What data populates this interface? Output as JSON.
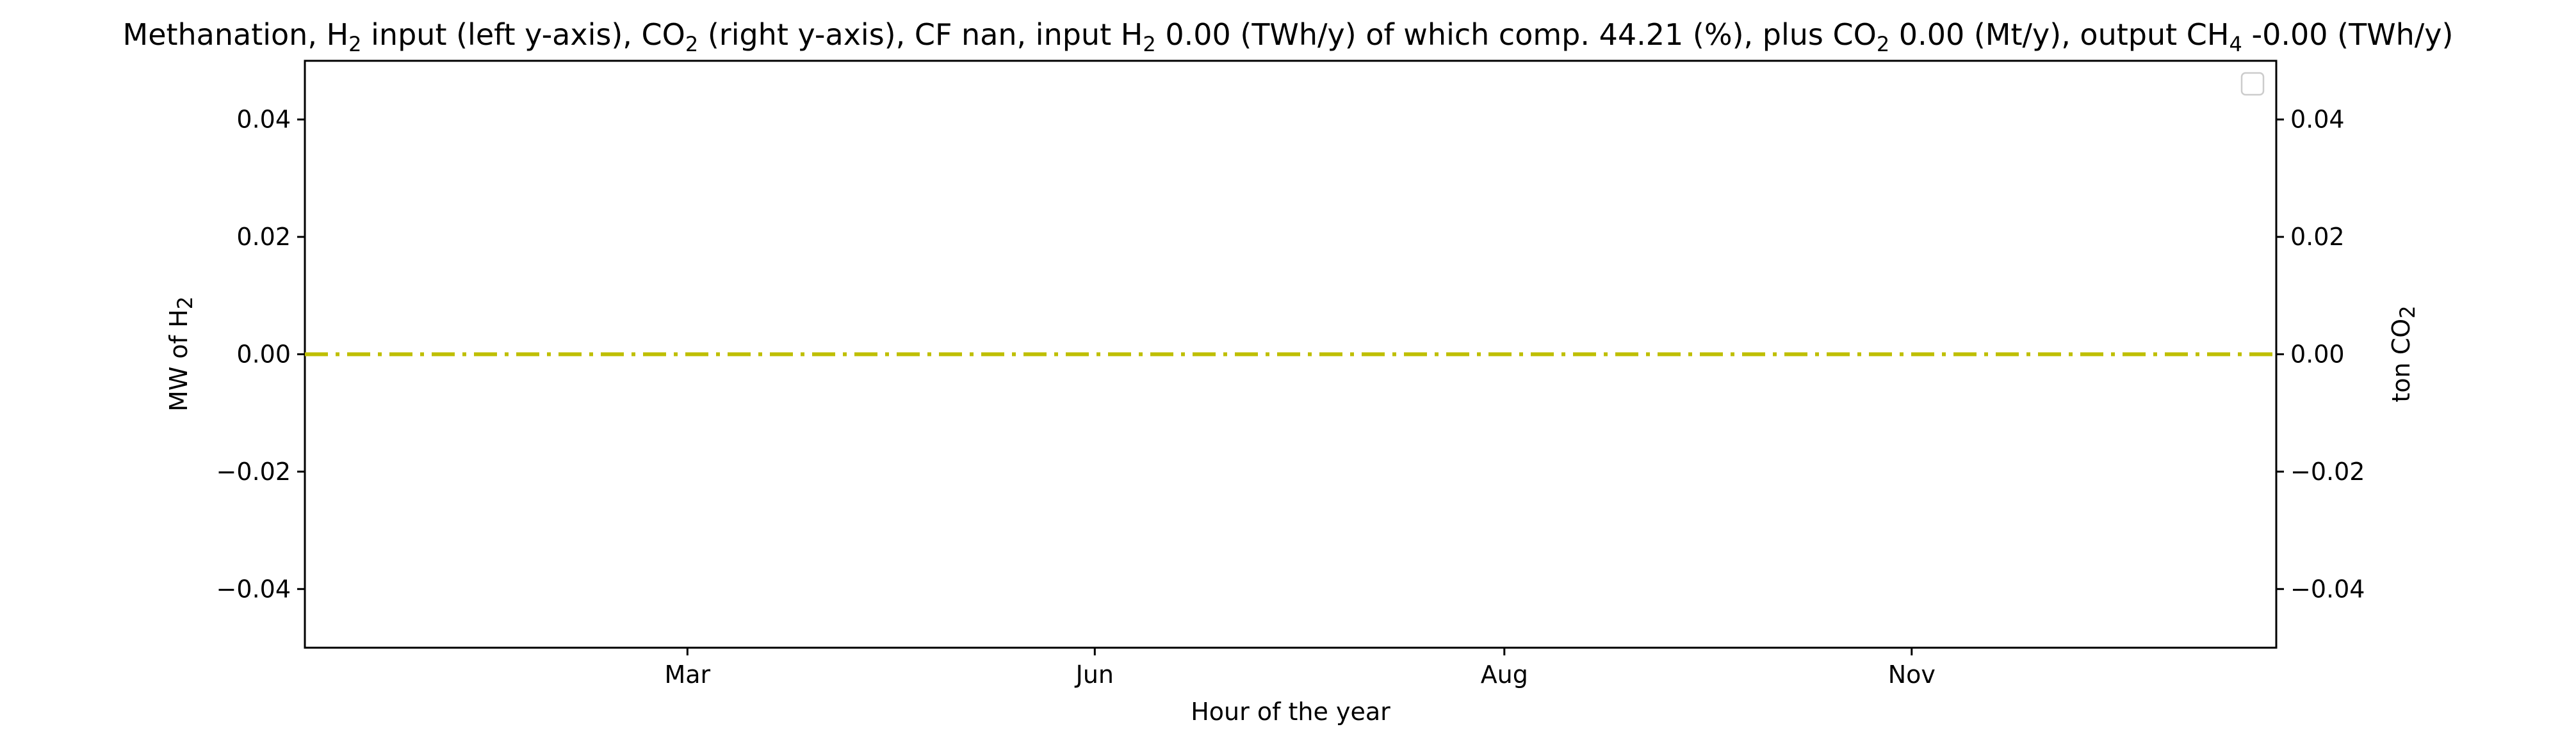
{
  "chart_data": {
    "type": "line",
    "title": {
      "p1": "Methanation, H",
      "s1": "2",
      "p2": " input (left y-axis), CO",
      "s2": "2",
      "p3": " (right y-axis), CF nan, input H",
      "s3": "2",
      "p4": " 0.00 (TWh/y) of which comp. 44.21 (%), plus CO",
      "s4": "2",
      "p5": " 0.00 (Mt/y), output CH",
      "s5": "4",
      "p6": " -0.00 (TWh/y)"
    },
    "xlabel": "Hour of the year",
    "ylabel_left": {
      "main": "MW of H",
      "sub": "2"
    },
    "ylabel_right": {
      "main": "ton CO",
      "sub": "2"
    },
    "x_range": [
      0,
      8760
    ],
    "x_ticks": [
      {
        "value": 1700,
        "label": "Mar"
      },
      {
        "value": 3510,
        "label": "Jun"
      },
      {
        "value": 5330,
        "label": "Aug"
      },
      {
        "value": 7140,
        "label": "Nov"
      }
    ],
    "ylim_left": [
      -0.05,
      0.05
    ],
    "ylim_right": [
      -0.05,
      0.05
    ],
    "y_ticks_left": [
      {
        "value": 0.04,
        "label": "0.04"
      },
      {
        "value": 0.02,
        "label": "0.02"
      },
      {
        "value": 0.0,
        "label": "0.00"
      },
      {
        "value": -0.02,
        "label": "−0.02"
      },
      {
        "value": -0.04,
        "label": "−0.04"
      }
    ],
    "y_ticks_right": [
      {
        "value": 0.04,
        "label": "0.04"
      },
      {
        "value": 0.02,
        "label": "0.02"
      },
      {
        "value": 0.0,
        "label": "0.00"
      },
      {
        "value": -0.02,
        "label": "−0.02"
      },
      {
        "value": -0.04,
        "label": "−0.04"
      }
    ],
    "series": [
      {
        "axis": "right",
        "style": "dash-dot",
        "color": "#bfbf00",
        "x": [
          0,
          8760
        ],
        "y": [
          0.0,
          0.0
        ]
      }
    ],
    "grid": false,
    "legend": {
      "placement": "top-right",
      "entries": []
    }
  }
}
